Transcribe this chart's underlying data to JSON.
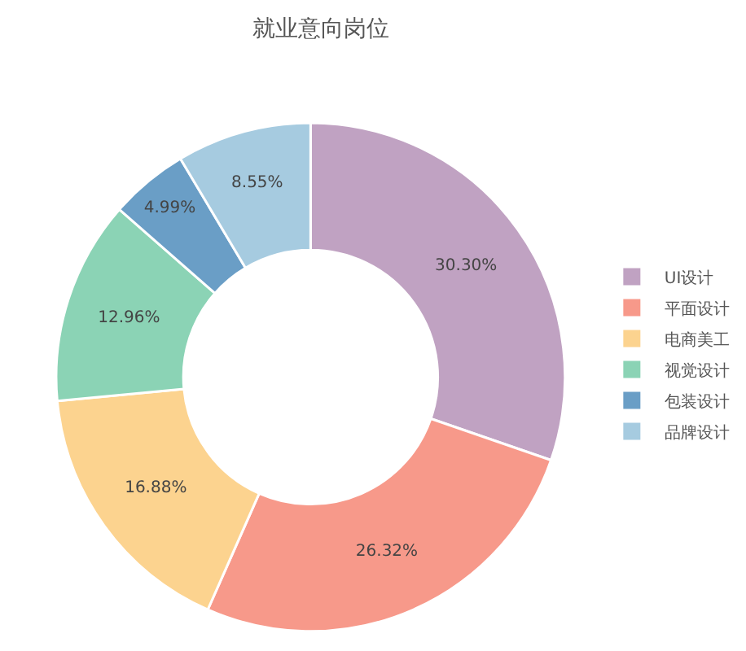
{
  "chart_data": {
    "type": "donut",
    "title": "就业意向岗位",
    "categories": [
      "UI设计",
      "平面设计",
      "电商美工",
      "视觉设计",
      "包装设计",
      "品牌设计"
    ],
    "values": [
      30.3,
      26.32,
      16.88,
      12.96,
      4.99,
      8.55
    ],
    "value_labels": [
      "30.30%",
      "26.32%",
      "16.88%",
      "12.96%",
      "4.99%",
      "8.55%"
    ],
    "colors": [
      "#c0a2c2",
      "#f7998a",
      "#fcd38f",
      "#8bd3b5",
      "#6a9ec6",
      "#a6cbe0"
    ],
    "legend": "right"
  }
}
